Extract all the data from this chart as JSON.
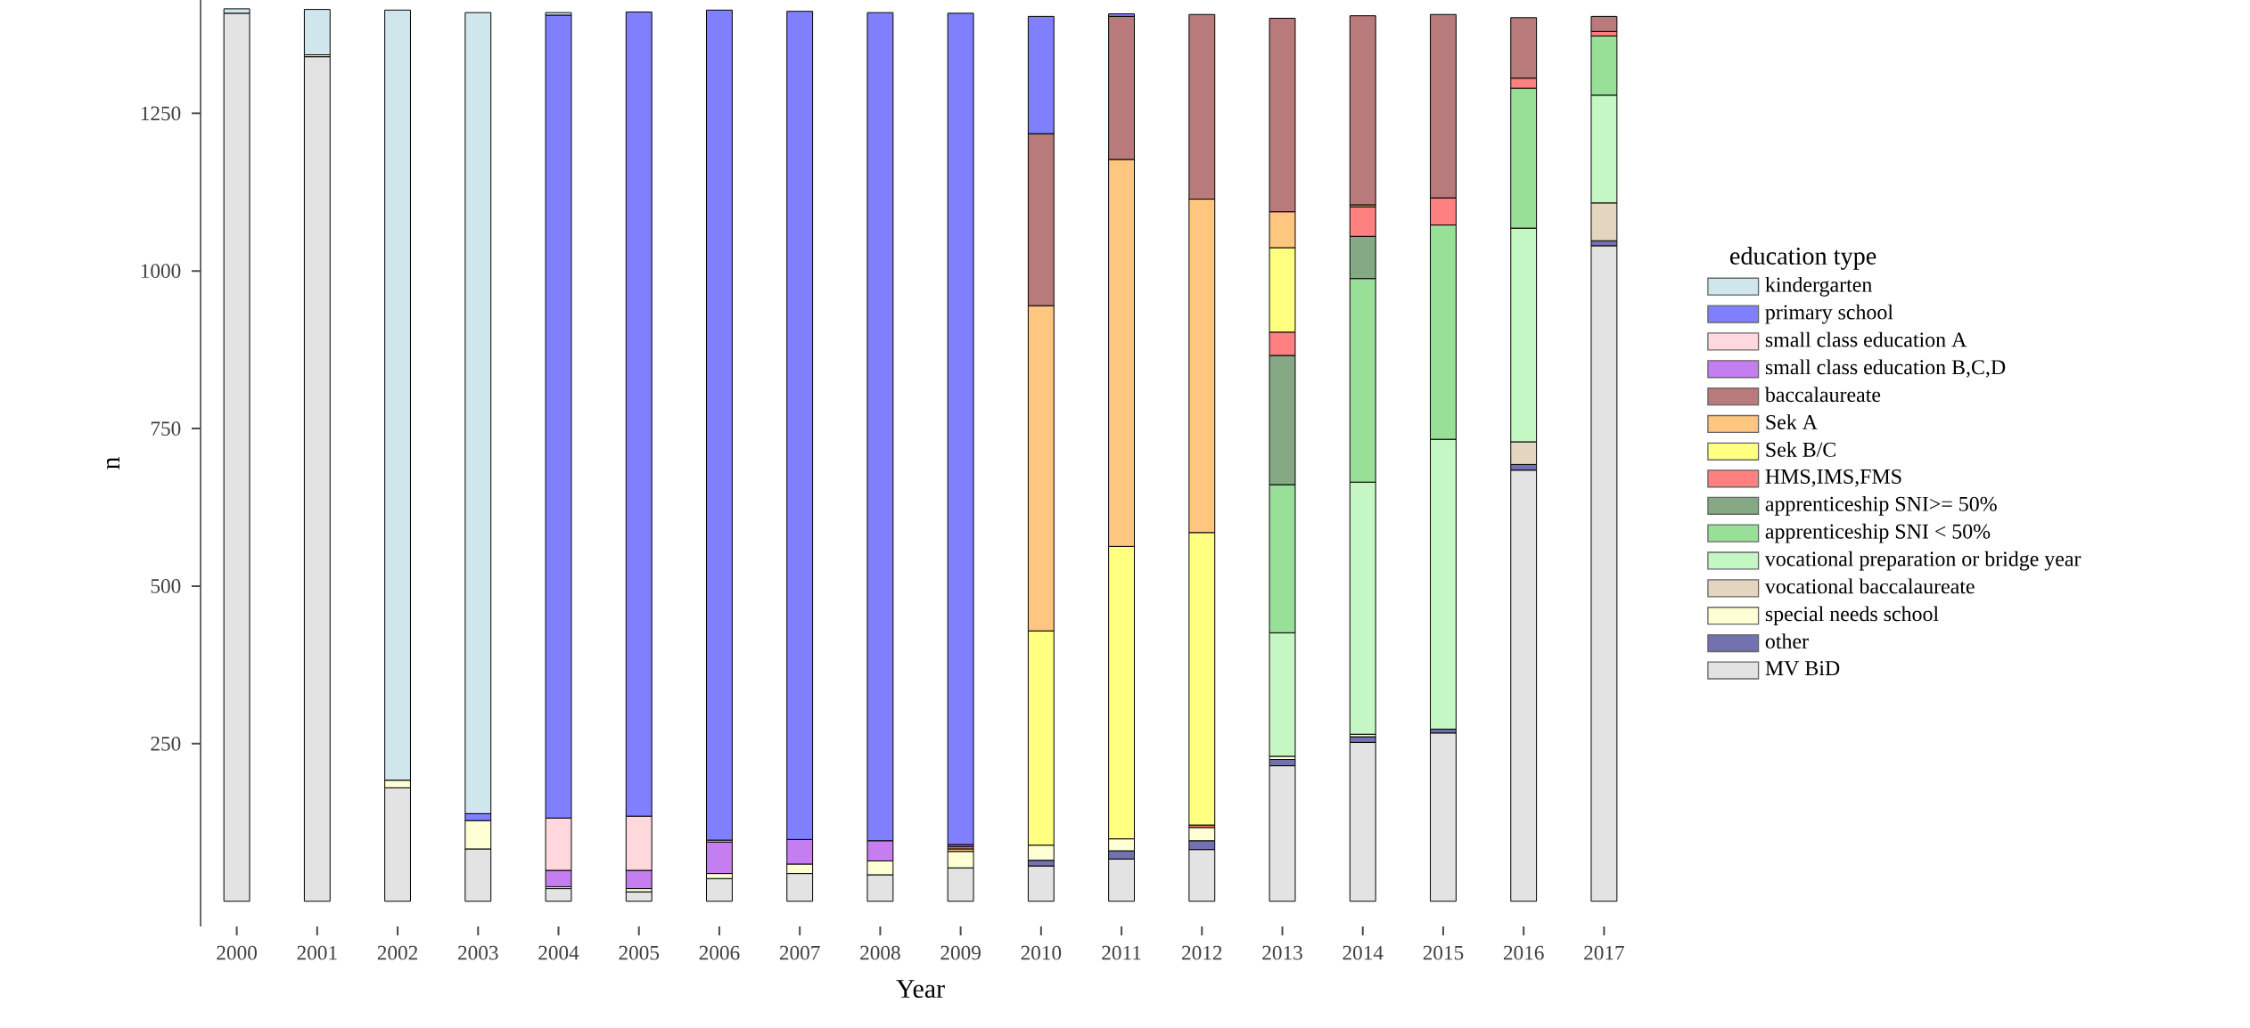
{
  "chart_data": {
    "type": "bar",
    "stacked": true,
    "xlabel": "Year",
    "ylabel": "n",
    "legend_title": "education type",
    "legend": "right",
    "categories": [
      "2000",
      "2001",
      "2002",
      "2003",
      "2004",
      "2005",
      "2006",
      "2007",
      "2008",
      "2009",
      "2010",
      "2011",
      "2012",
      "2013",
      "2014",
      "2015",
      "2016",
      "2017"
    ],
    "ylim": [
      -40,
      1430
    ],
    "yticks": [
      250,
      500,
      750,
      1000,
      1250
    ],
    "series": [
      {
        "name": "MV BiD",
        "color": "#e3e3e3",
        "values": [
          1409,
          1340,
          180,
          83,
          20,
          15,
          36,
          44,
          42,
          53,
          56,
          67,
          82,
          215,
          252,
          267,
          684,
          1040
        ]
      },
      {
        "name": "other",
        "color": "#7272b0",
        "values": [
          null,
          null,
          null,
          null,
          null,
          null,
          null,
          null,
          null,
          null,
          9,
          13,
          14,
          10,
          9,
          6,
          9,
          8
        ]
      },
      {
        "name": "special needs school",
        "color": "#ffffd6",
        "values": [
          null,
          3,
          12,
          45,
          3,
          5,
          8,
          15,
          22,
          26,
          24,
          19,
          21,
          5,
          4,
          null,
          null,
          null
        ]
      },
      {
        "name": "vocational baccalaureate",
        "color": "#e4d5c0",
        "values": [
          null,
          null,
          null,
          null,
          null,
          null,
          null,
          null,
          null,
          null,
          null,
          null,
          null,
          null,
          null,
          null,
          36,
          60
        ]
      },
      {
        "name": "vocational preparation or bridge year",
        "color": "#c4f7c4",
        "values": [
          null,
          null,
          null,
          null,
          null,
          null,
          null,
          null,
          null,
          null,
          null,
          null,
          null,
          196,
          400,
          460,
          339,
          171
        ]
      },
      {
        "name": "apprenticeship SNI < 50%",
        "color": "#98e098",
        "values": [
          null,
          null,
          null,
          null,
          null,
          null,
          null,
          null,
          null,
          null,
          null,
          null,
          null,
          235,
          323,
          340,
          222,
          94
        ]
      },
      {
        "name": "apprenticeship SNI>= 50%",
        "color": "#85a985",
        "values": [
          null,
          null,
          null,
          null,
          null,
          null,
          null,
          null,
          null,
          null,
          null,
          null,
          null,
          205,
          67,
          null,
          null,
          null
        ]
      },
      {
        "name": "HMS,IMS,FMS",
        "color": "#ff8080",
        "values": [
          null,
          null,
          null,
          null,
          null,
          null,
          null,
          null,
          null,
          null,
          null,
          null,
          4,
          37,
          47,
          43,
          16,
          7
        ]
      },
      {
        "name": "Sek B/C",
        "color": "#ffff80",
        "values": [
          null,
          null,
          null,
          null,
          null,
          null,
          null,
          null,
          null,
          null,
          340,
          464,
          464,
          134,
          null,
          null,
          null,
          null
        ]
      },
      {
        "name": "Sek A",
        "color": "#ffc680",
        "values": [
          null,
          null,
          null,
          null,
          null,
          null,
          null,
          null,
          null,
          4,
          516,
          614,
          529,
          57,
          3,
          null,
          null,
          null
        ]
      },
      {
        "name": "baccalaureate",
        "color": "#b87a7a",
        "values": [
          null,
          null,
          null,
          null,
          null,
          null,
          null,
          null,
          null,
          4,
          273,
          227,
          293,
          307,
          300,
          291,
          96,
          24
        ]
      },
      {
        "name": "small class education B,C,D",
        "color": "#c57ef0",
        "values": [
          null,
          null,
          null,
          null,
          26,
          29,
          50,
          39,
          32,
          3,
          null,
          null,
          null,
          null,
          null,
          null,
          null,
          null
        ]
      },
      {
        "name": "small class education A",
        "color": "#ffd8de",
        "values": [
          null,
          null,
          null,
          null,
          83,
          86,
          3,
          null,
          null,
          null,
          null,
          null,
          null,
          null,
          null,
          null,
          null,
          null
        ]
      },
      {
        "name": "primary school",
        "color": "#8080ff",
        "values": [
          null,
          null,
          null,
          11,
          1274,
          1276,
          1317,
          1314,
          1314,
          1319,
          186,
          4,
          null,
          null,
          null,
          null,
          null,
          null
        ]
      },
      {
        "name": "kindergarten",
        "color": "#cfe6ec",
        "values": [
          7,
          72,
          1222,
          1271,
          4,
          null,
          null,
          null,
          null,
          null,
          null,
          null,
          null,
          null,
          null,
          null,
          null,
          null
        ]
      }
    ]
  }
}
